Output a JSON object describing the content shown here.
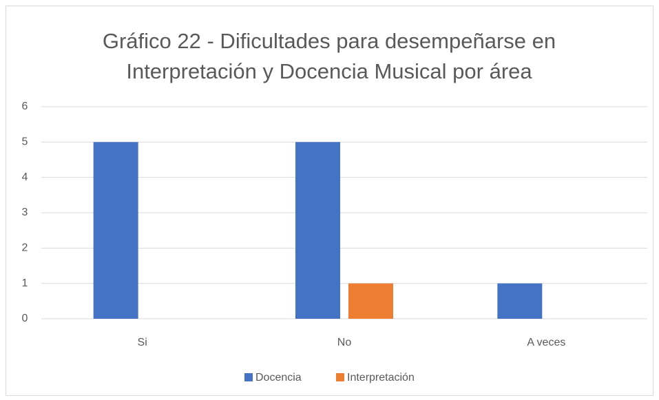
{
  "chart_data": {
    "type": "bar",
    "title": "Gráfico 22 - Dificultades para desempeñarse en Interpretación y Docencia Musical por área",
    "categories": [
      "Si",
      "No",
      "A veces"
    ],
    "series": [
      {
        "name": "Docencia",
        "color": "#4472c4",
        "values": [
          5,
          5,
          1
        ]
      },
      {
        "name": "Interpretación",
        "color": "#ed7d31",
        "values": [
          0,
          1,
          0
        ]
      }
    ],
    "ylim": [
      0,
      6
    ],
    "yticks": [
      0,
      1,
      2,
      3,
      4,
      5,
      6
    ],
    "grid": true,
    "legend": "bottom"
  }
}
